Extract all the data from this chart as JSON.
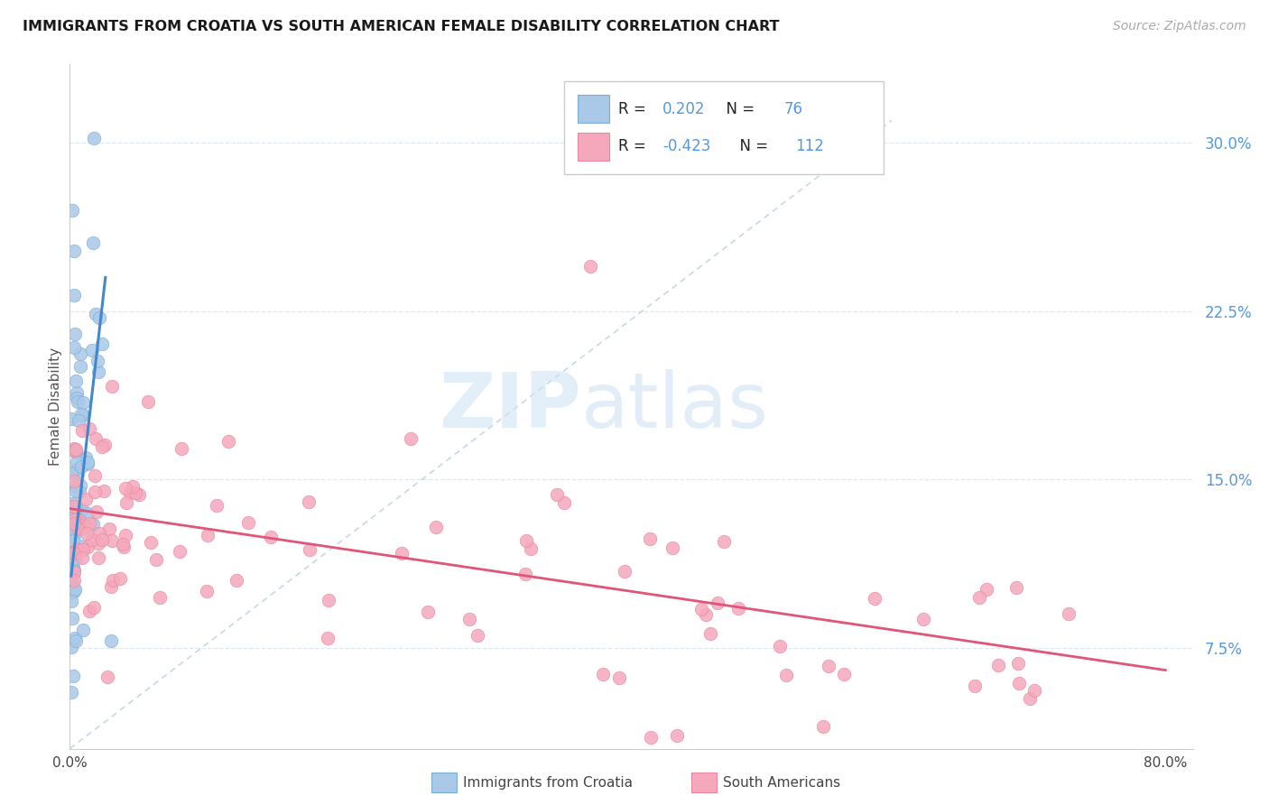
{
  "title": "IMMIGRANTS FROM CROATIA VS SOUTH AMERICAN FEMALE DISABILITY CORRELATION CHART",
  "source": "Source: ZipAtlas.com",
  "ylabel": "Female Disability",
  "ytick_labels": [
    "7.5%",
    "15.0%",
    "22.5%",
    "30.0%"
  ],
  "ytick_values": [
    0.075,
    0.15,
    0.225,
    0.3
  ],
  "xlim": [
    0.0,
    0.82
  ],
  "ylim": [
    0.03,
    0.335
  ],
  "blue_scatter_color": "#aac8e8",
  "blue_edge_color": "#7aaed4",
  "pink_scatter_color": "#f5a8bc",
  "pink_edge_color": "#e888a0",
  "blue_line_color": "#4488cc",
  "pink_line_color": "#e05578",
  "dashed_color": "#b8cfe0",
  "grid_color": "#dde8f0",
  "right_axis_color": "#5599dd",
  "legend_R_color": "#333333",
  "legend_N_color": "#4488cc",
  "legend_value_color": "#4488cc",
  "legend_label_blue": "Immigrants from Croatia",
  "legend_label_pink": "South Americans",
  "watermark_zip_color": "#d0e4f4",
  "watermark_atlas_color": "#c8ddf0",
  "title_fontsize": 11.5,
  "source_fontsize": 10,
  "scatter_size": 110,
  "scatter_alpha": 0.85
}
